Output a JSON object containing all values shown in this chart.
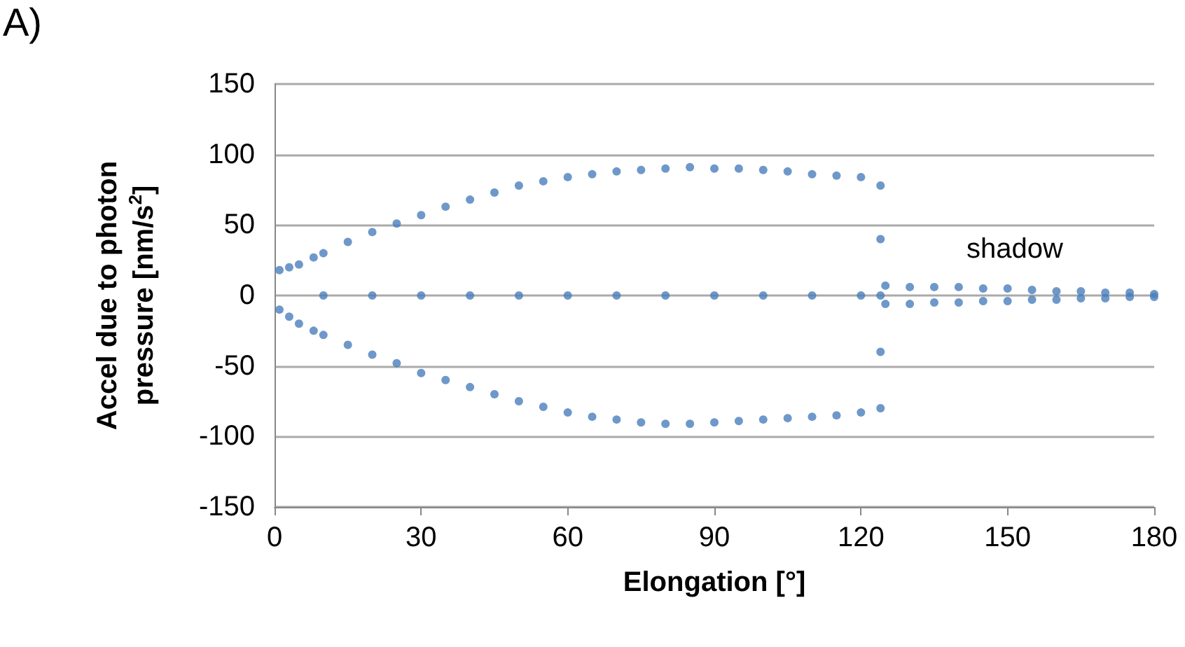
{
  "chart_data": {
    "type": "scatter",
    "xlabel": "Elongation [°]",
    "ylabel": "Accel due to photon pressure [nm/s$^{2}$]",
    "annotations": [
      "A)",
      "shadow"
    ],
    "series": [
      {
        "color": "#4a7ebb",
        "x": [
          1,
          3,
          5,
          8,
          10,
          15,
          20,
          25,
          30,
          35,
          40,
          45,
          50,
          55,
          60,
          65,
          70,
          75,
          80,
          85,
          90,
          95,
          100,
          105,
          110,
          115,
          120,
          124,
          1,
          3,
          5,
          8,
          10,
          15,
          20,
          25,
          30,
          35,
          40,
          45,
          50,
          55,
          60,
          65,
          70,
          75,
          80,
          85,
          90,
          95,
          100,
          105,
          110,
          115,
          120,
          124,
          124,
          124,
          124,
          10,
          20,
          30,
          40,
          50,
          60,
          70,
          80,
          90,
          100,
          110,
          120,
          125,
          130,
          135,
          140,
          145,
          150,
          155,
          160,
          165,
          170,
          175,
          180,
          125,
          130,
          135,
          140,
          145,
          150,
          155,
          160,
          165,
          170,
          175,
          180
        ],
        "values": [
          18,
          20,
          22,
          27,
          30,
          38,
          45,
          51,
          57,
          63,
          68,
          73,
          78,
          81,
          84,
          86,
          88,
          89,
          90,
          91,
          90,
          90,
          89,
          88,
          86,
          85,
          84,
          78,
          -10,
          -15,
          -20,
          -25,
          -28,
          -35,
          -42,
          -48,
          -55,
          -60,
          -65,
          -70,
          -75,
          -79,
          -83,
          -86,
          -88,
          -90,
          -91,
          -91,
          -90,
          -89,
          -88,
          -87,
          -86,
          -85,
          -83,
          -80,
          40,
          0,
          -40,
          0,
          0,
          0,
          0,
          0,
          0,
          0,
          0,
          0,
          0,
          0,
          0,
          7,
          6,
          6,
          6,
          5,
          5,
          4,
          3,
          3,
          2,
          2,
          1,
          -6,
          -6,
          -5,
          -5,
          -4,
          -4,
          -3,
          -3,
          -2,
          -2,
          -1,
          -1
        ]
      }
    ],
    "xlim": [
      0,
      180
    ],
    "xticks": [
      0,
      30,
      60,
      90,
      120,
      150,
      180
    ],
    "ylim": [
      -150,
      150
    ],
    "yticks": [
      -150,
      -100,
      -50,
      0,
      50,
      100,
      150
    ],
    "grid": "y",
    "marker": "circle"
  }
}
